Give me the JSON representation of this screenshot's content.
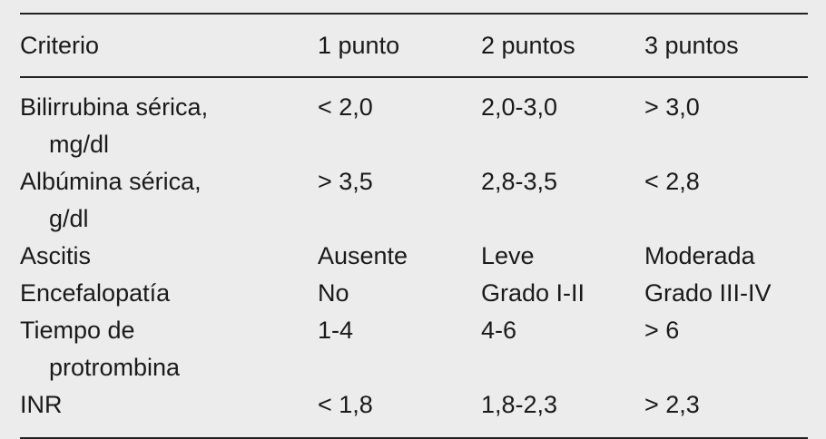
{
  "table": {
    "header": [
      "Criterio",
      "1 punto",
      "2 puntos",
      "3 puntos"
    ],
    "rows": [
      [
        "Bilirrubina sérica,\nmg/dl",
        "< 2,0",
        "2,0-3,0",
        "> 3,0"
      ],
      [
        "Albúmina sérica,\ng/dl",
        "> 3,5",
        "2,8-3,5",
        "< 2,8"
      ],
      [
        "Ascitis",
        "Ausente",
        "Leve",
        "Moderada"
      ],
      [
        "Encefalopatía",
        "No",
        "Grado I-II",
        "Grado III-IV"
      ],
      [
        "Tiempo de\nprotrombina",
        "1-4",
        "4-6",
        "> 6"
      ],
      [
        "INR",
        "< 1,8",
        "1,8-2,3",
        "> 2,3"
      ]
    ]
  }
}
